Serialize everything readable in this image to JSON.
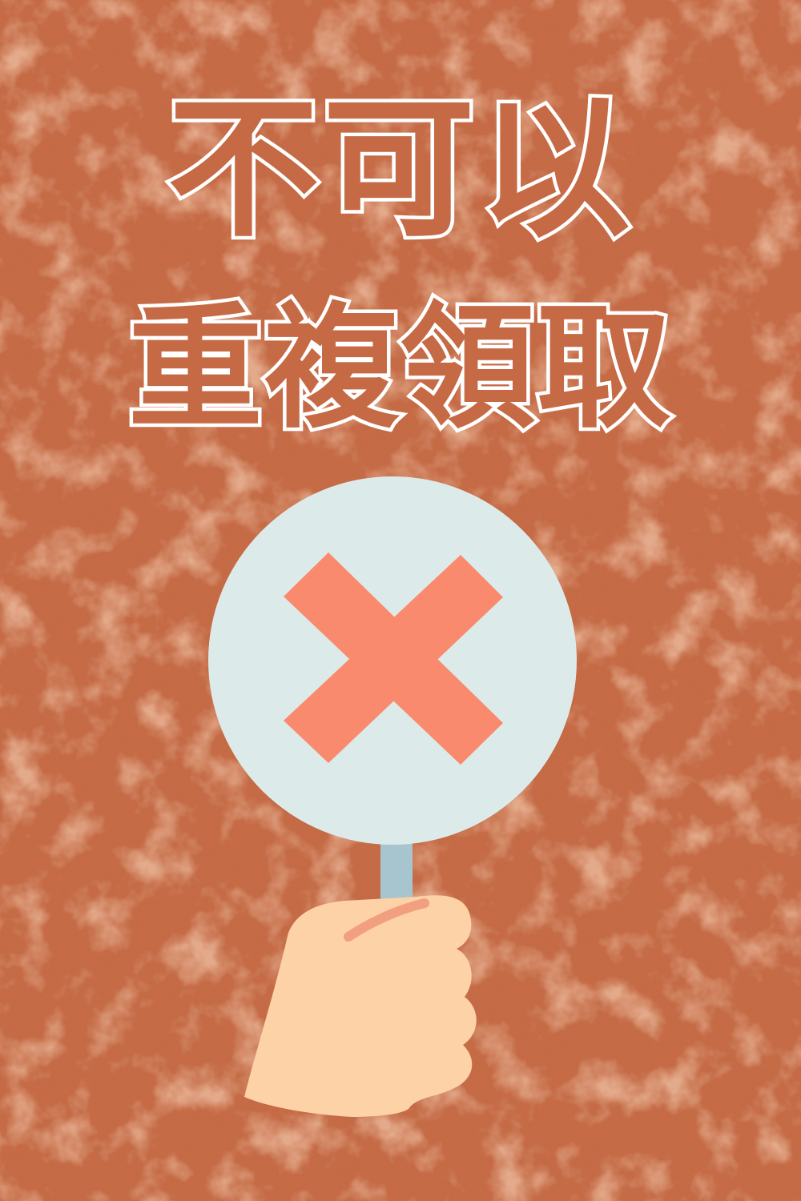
{
  "headline": {
    "line1": "不可以",
    "line2": "重複領取"
  },
  "colors": {
    "background": "#c56a45",
    "text_outline": "#ffffff",
    "sign_face": "#ddeaea",
    "cross_mark": "#fa8a6e",
    "handle": "#a6c5cf",
    "hand_skin": "#fdd2a6",
    "finger_line": "#f29f7f"
  },
  "icons": {
    "sign": "no-sign-paddle",
    "mark": "cross-mark-icon",
    "hand": "hand-holding-sign"
  }
}
